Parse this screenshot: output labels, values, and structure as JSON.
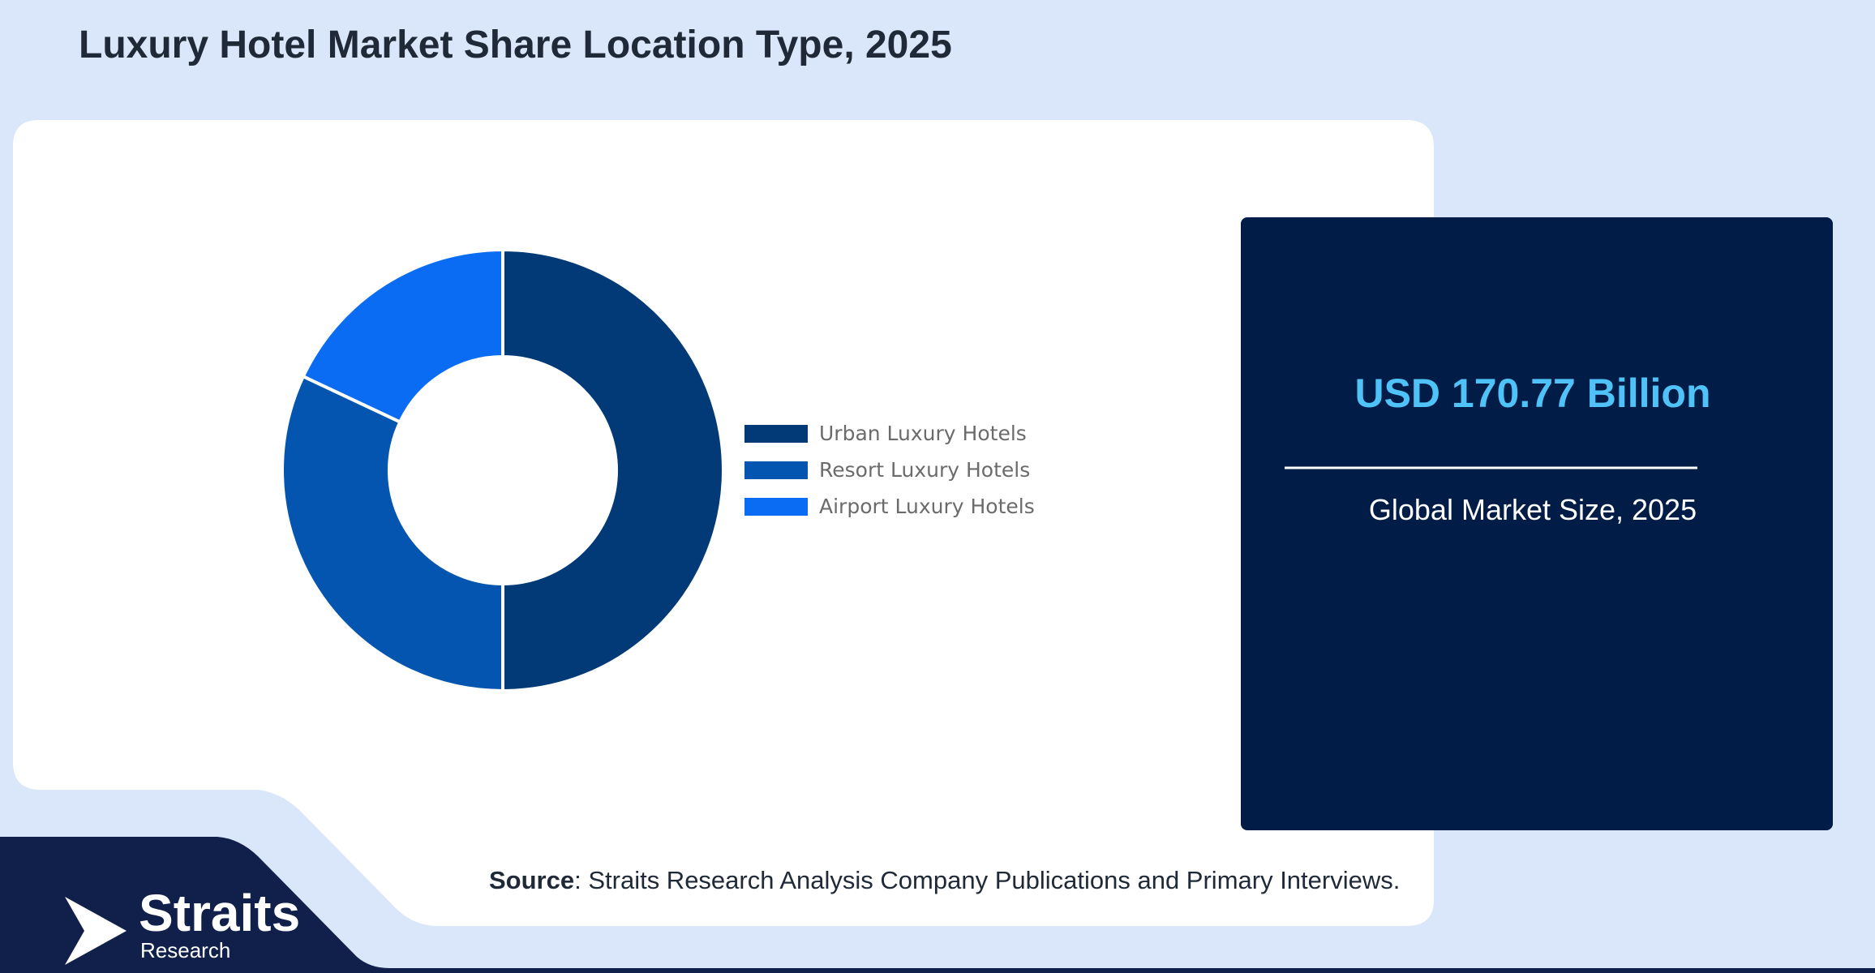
{
  "title": "Luxury Hotel Market Share Location Type, 2025",
  "chart_data": {
    "type": "pie",
    "donut": true,
    "categories": [
      "Urban Luxury Hotels",
      "Resort Luxury Hotels",
      "Airport Luxury Hotels"
    ],
    "values": [
      50,
      32,
      18
    ],
    "unit": "%",
    "colors": [
      "#023a78",
      "#0455b0",
      "#0a6cf2"
    ],
    "legend_position": "right",
    "title": "Luxury Hotel Market Share Location Type, 2025"
  },
  "stat": {
    "value": "USD 170.77 Billion",
    "caption": "Global Market Size, 2025"
  },
  "source": {
    "label": "Source",
    "text": ": Straits Research Analysis Company Publications and Primary Interviews."
  },
  "logo": {
    "word": "Straits",
    "sub": "Research"
  },
  "colors": {
    "page_bg": "#dae6f9",
    "card_bg": "#ffffff",
    "stat_panel": "#011c46",
    "stat_value": "#4fc3f7",
    "footer": "#11204a"
  }
}
